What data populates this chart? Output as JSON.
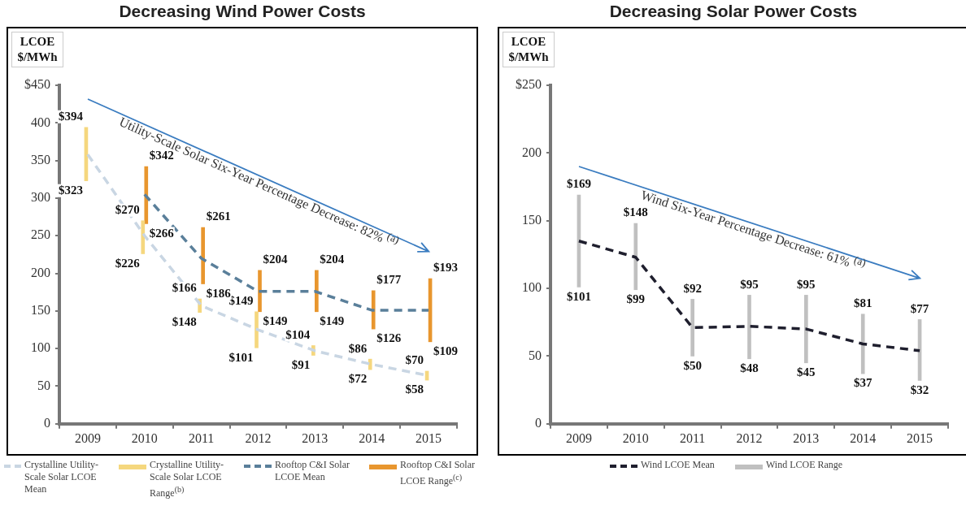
{
  "chart_data": [
    {
      "type": "line",
      "title": "Decreasing Wind Power Costs",
      "ylabel": "LCOE $/MWh",
      "categories": [
        "2009",
        "2010",
        "2011",
        "2012",
        "2013",
        "2014",
        "2015"
      ],
      "series": [
        {
          "name": "Crystalline Utility-Scale Solar LCOE Mean",
          "line_style": "dashed",
          "color": "#c9d6e3",
          "values": [
            358,
            250,
            157,
            125,
            97,
            79,
            64
          ]
        },
        {
          "name": "Crystalline Utility-Scale Solar LCOE Range$^{(b)}$",
          "type": "bar",
          "color": "#f5d77e",
          "base": [
            323,
            226,
            148,
            101,
            91,
            72,
            58
          ],
          "values": [
            71,
            44,
            18,
            48,
            13,
            14,
            12
          ]
        },
        {
          "name": "Rooftop C&I Solar LCOE Mean",
          "line_style": "dashed",
          "color": "#5a7f9a",
          "values": [
            null,
            305,
            220,
            176,
            176,
            151,
            151
          ]
        },
        {
          "name": "Rooftop C&I Solar LCOE Range$^{(c)}$",
          "type": "bar",
          "color": "#e8962e",
          "base": [
            null,
            266,
            186,
            149,
            149,
            126,
            109
          ],
          "values": [
            null,
            76,
            75,
            55,
            55,
            51,
            84
          ]
        }
      ],
      "ylim": [
        0,
        450
      ],
      "yticks": [
        {
          "value": 450,
          "label": "$450"
        },
        400,
        350,
        300,
        250,
        200,
        150,
        100,
        50,
        0
      ],
      "legend": "bottom",
      "annotations": [
        "Utility-Scale Solar Six-Year Percentage Decrease: 82% $^{(a)}$",
        {
          "text": "$394",
          "x": "2009",
          "y": 394
        },
        {
          "text": "$323",
          "x": "2009",
          "y": 323
        },
        {
          "text": "$270",
          "x": "2010",
          "y": 270
        },
        {
          "text": "$226",
          "x": "2010",
          "y": 226
        },
        {
          "text": "$166",
          "x": "2011",
          "y": 166
        },
        {
          "text": "$148",
          "x": "2011",
          "y": 148
        },
        {
          "text": "$149",
          "x": "2012",
          "y": 149
        },
        {
          "text": "$101",
          "x": "2012",
          "y": 101
        },
        {
          "text": "$104",
          "x": "2013",
          "y": 104
        },
        {
          "text": "$91",
          "x": "2013",
          "y": 91
        },
        {
          "text": "$86",
          "x": "2014",
          "y": 86
        },
        {
          "text": "$72",
          "x": "2014",
          "y": 72
        },
        {
          "text": "$70",
          "x": "2015",
          "y": 70
        },
        {
          "text": "$58",
          "x": "2015",
          "y": 58
        },
        {
          "text": "$342",
          "x": "2010",
          "y": 342
        },
        {
          "text": "$266",
          "x": "2010",
          "y": 266
        },
        {
          "text": "$261",
          "x": "2011",
          "y": 261
        },
        {
          "text": "$186",
          "x": "2011",
          "y": 186
        },
        {
          "text": "$204",
          "x": "2012",
          "y": 204
        },
        {
          "text": "$149",
          "x": "2012",
          "y": 149
        },
        {
          "text": "$204",
          "x": "2013",
          "y": 204
        },
        {
          "text": "$149",
          "x": "2013",
          "y": 149
        },
        {
          "text": "$177",
          "x": "2014",
          "y": 177
        },
        {
          "text": "$126",
          "x": "2014",
          "y": 126
        },
        {
          "text": "$193",
          "x": "2015",
          "y": 193
        },
        {
          "text": "$109",
          "x": "2015",
          "y": 109
        }
      ]
    },
    {
      "type": "line",
      "title": "Decreasing Solar Power Costs",
      "ylabel": "LCOE $/MWh",
      "categories": [
        "2009",
        "2010",
        "2011",
        "2012",
        "2013",
        "2014",
        "2015"
      ],
      "series": [
        {
          "name": "Wind LCOE Mean",
          "line_style": "dashed",
          "color": "#1f1f2e",
          "values": [
            135,
            123,
            71,
            72,
            70,
            59,
            54
          ]
        },
        {
          "name": "Wind LCOE Range",
          "type": "bar",
          "color": "#c0c0c0",
          "base": [
            101,
            99,
            50,
            48,
            45,
            37,
            32
          ],
          "values": [
            68,
            49,
            42,
            47,
            50,
            44,
            45
          ]
        }
      ],
      "ylim": [
        0,
        250
      ],
      "yticks": [
        {
          "value": 250,
          "label": "$250"
        },
        200,
        150,
        100,
        50,
        0
      ],
      "legend": "bottom",
      "annotations": [
        "Wind Six-Year Percentage Decrease: 61% $^{(a)}$",
        {
          "text": "$169",
          "x": "2009",
          "y": 169
        },
        {
          "text": "$101",
          "x": "2009",
          "y": 101
        },
        {
          "text": "$148",
          "x": "2010",
          "y": 148
        },
        {
          "text": "$99",
          "x": "2010",
          "y": 99
        },
        {
          "text": "$92",
          "x": "2011",
          "y": 92
        },
        {
          "text": "$50",
          "x": "2011",
          "y": 50
        },
        {
          "text": "$95",
          "x": "2012",
          "y": 95
        },
        {
          "text": "$48",
          "x": "2012",
          "y": 48
        },
        {
          "text": "$95",
          "x": "2013",
          "y": 95
        },
        {
          "text": "$45",
          "x": "2013",
          "y": 45
        },
        {
          "text": "$81",
          "x": "2014",
          "y": 81
        },
        {
          "text": "$37",
          "x": "2014",
          "y": 37
        },
        {
          "text": "$77",
          "x": "2015",
          "y": 77
        },
        {
          "text": "$32",
          "x": "2015",
          "y": 32
        }
      ]
    }
  ]
}
